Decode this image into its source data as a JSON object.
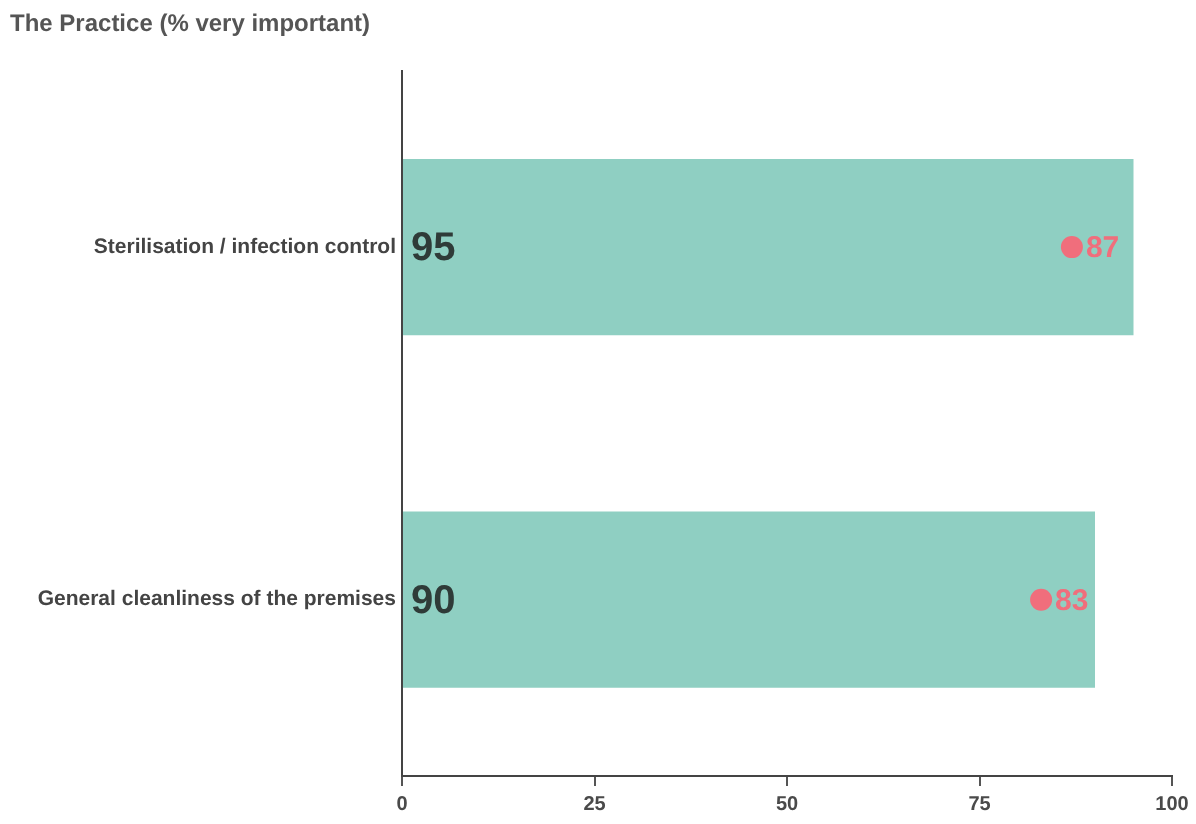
{
  "chart_data": {
    "type": "bar",
    "title": "The Practice (% very important)",
    "orientation": "horizontal",
    "categories": [
      "Sterilisation / infection control",
      "General cleanliness of the premises"
    ],
    "series": [
      {
        "color": "#8fcfc2",
        "values": [
          95,
          90
        ]
      },
      {
        "type": "scatter",
        "color": "#f06e7c",
        "x": [
          "Sterilisation / infection control",
          "General cleanliness of the premises"
        ],
        "values": [
          87,
          83
        ]
      }
    ],
    "xlim": [
      0,
      100
    ],
    "xticks": [
      0,
      25,
      50,
      75,
      100
    ],
    "data_labels": true,
    "marker": "circle",
    "grid": false,
    "legend": false
  }
}
